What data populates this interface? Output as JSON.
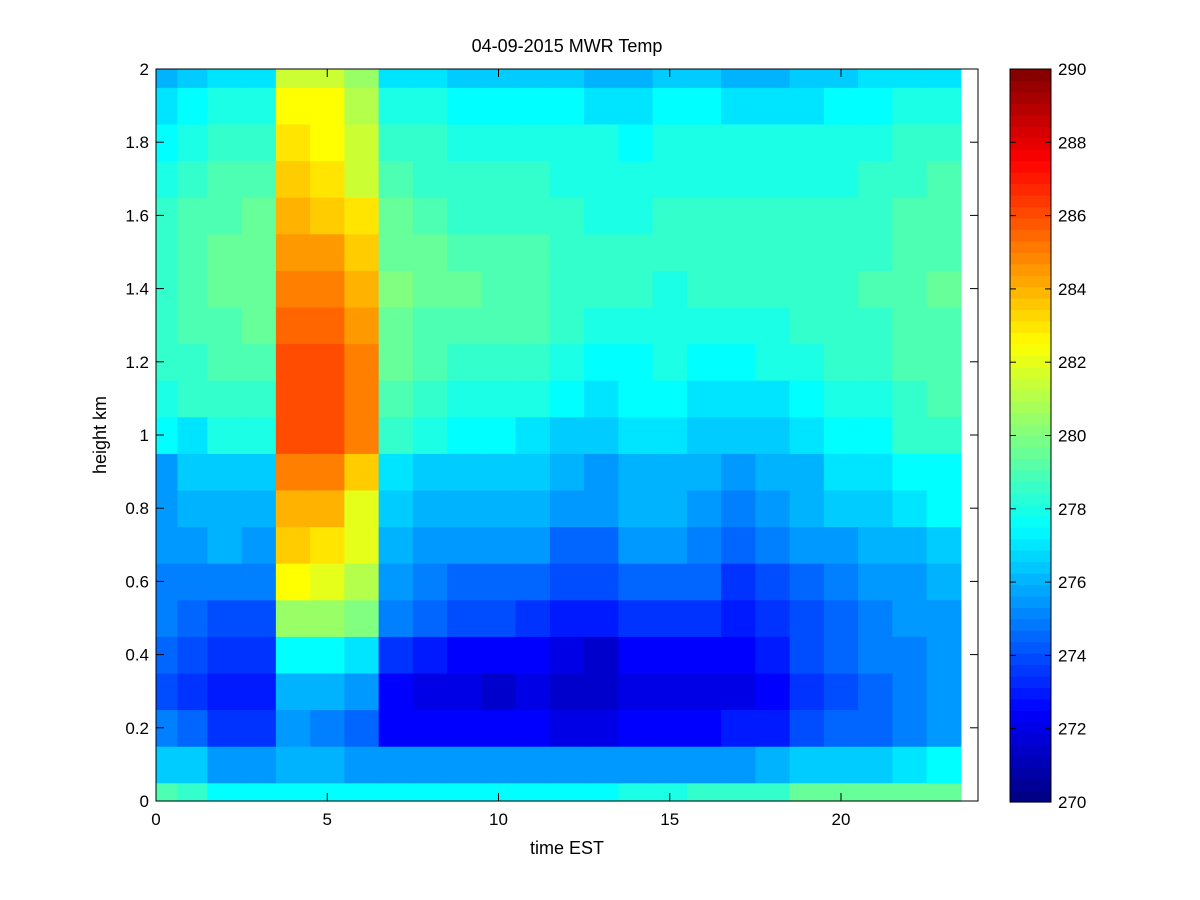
{
  "chart_data": {
    "type": "heatmap",
    "title": "04-09-2015 MWR Temp",
    "xlabel": "time EST",
    "ylabel": "height km",
    "xlim": [
      0,
      24
    ],
    "ylim": [
      0,
      2
    ],
    "x_ticks": [
      0,
      5,
      10,
      15,
      20
    ],
    "y_ticks": [
      0,
      0.2,
      0.4,
      0.6,
      0.8,
      1,
      1.2,
      1.4,
      1.6,
      1.8,
      2
    ],
    "y_tick_labels": [
      "0",
      "0.2",
      "0.4",
      "0.6",
      "0.8",
      "1",
      "1.2",
      "1.4",
      "1.6",
      "1.8",
      "2"
    ],
    "colormap": "jet",
    "clim": [
      270,
      290
    ],
    "colorbar_ticks": [
      270,
      272,
      274,
      276,
      278,
      280,
      282,
      284,
      286,
      288,
      290
    ],
    "x": [
      0.25,
      1,
      2,
      3,
      4,
      5,
      6,
      7,
      8,
      9,
      10,
      11,
      12,
      13,
      14,
      15,
      16,
      17,
      18,
      19,
      20,
      21,
      22,
      23
    ],
    "y": [
      0,
      0.1,
      0.2,
      0.3,
      0.4,
      0.5,
      0.6,
      0.7,
      0.8,
      0.9,
      1.0,
      1.1,
      1.2,
      1.3,
      1.4,
      1.5,
      1.6,
      1.7,
      1.8,
      1.9,
      2.0
    ],
    "z": [
      [
        279.0,
        278.5,
        277.5,
        277.5,
        277.5,
        277.5,
        277.5,
        277.5,
        277.5,
        277.5,
        277.5,
        277.5,
        277.5,
        277.5,
        278.0,
        278.0,
        278.5,
        278.5,
        278.5,
        279.5,
        279.5,
        279.5,
        279.5,
        279.5
      ],
      [
        276.5,
        276.5,
        275.5,
        275.5,
        276.0,
        276.0,
        275.5,
        275.5,
        275.5,
        275.5,
        275.5,
        275.5,
        275.5,
        275.5,
        275.5,
        275.5,
        275.5,
        275.5,
        276.0,
        276.5,
        276.5,
        276.5,
        277.0,
        277.5
      ],
      [
        275.0,
        274.5,
        273.5,
        273.5,
        275.5,
        275.0,
        274.5,
        272.5,
        272.5,
        272.5,
        272.5,
        272.5,
        272.0,
        272.0,
        272.5,
        272.5,
        272.5,
        273.0,
        273.0,
        274.0,
        274.5,
        274.5,
        275.0,
        275.5
      ],
      [
        274.0,
        273.5,
        273.0,
        273.0,
        276.0,
        276.0,
        275.5,
        272.5,
        272.0,
        272.0,
        271.5,
        272.0,
        271.5,
        271.5,
        272.0,
        272.0,
        272.0,
        272.0,
        272.5,
        273.5,
        274.0,
        274.5,
        275.0,
        275.5
      ],
      [
        274.5,
        274.0,
        273.5,
        273.5,
        277.5,
        277.5,
        277.0,
        273.5,
        273.0,
        272.5,
        272.5,
        272.5,
        272.0,
        271.5,
        272.5,
        272.5,
        272.5,
        272.5,
        273.0,
        274.0,
        274.5,
        275.0,
        275.0,
        275.5
      ],
      [
        275.0,
        274.5,
        274.0,
        274.0,
        280.5,
        280.5,
        280.0,
        275.0,
        274.5,
        274.0,
        274.0,
        273.5,
        273.0,
        273.0,
        273.5,
        273.5,
        273.5,
        273.0,
        273.5,
        274.0,
        274.5,
        275.0,
        275.5,
        275.5
      ],
      [
        275.0,
        275.0,
        275.0,
        275.0,
        282.5,
        282.0,
        281.0,
        275.5,
        275.0,
        274.5,
        274.5,
        274.5,
        274.0,
        274.0,
        274.5,
        274.5,
        274.5,
        273.5,
        274.0,
        274.5,
        275.0,
        275.5,
        275.5,
        276.0
      ],
      [
        275.5,
        275.5,
        276.0,
        275.5,
        283.5,
        283.0,
        282.0,
        276.0,
        275.5,
        275.5,
        275.5,
        275.5,
        274.5,
        274.5,
        275.5,
        275.5,
        275.0,
        274.5,
        275.0,
        275.5,
        275.5,
        276.0,
        276.0,
        276.5
      ],
      [
        275.5,
        276.0,
        276.0,
        276.0,
        284.0,
        284.0,
        282.0,
        276.5,
        276.0,
        276.0,
        276.0,
        276.0,
        275.5,
        275.5,
        276.0,
        276.0,
        275.5,
        275.0,
        275.5,
        276.0,
        276.5,
        276.5,
        277.0,
        277.5
      ],
      [
        275.5,
        276.5,
        276.5,
        276.5,
        285.0,
        285.0,
        283.5,
        277.0,
        276.5,
        276.5,
        276.5,
        276.5,
        276.0,
        275.5,
        276.0,
        276.0,
        276.0,
        275.5,
        276.0,
        276.0,
        277.0,
        277.0,
        277.5,
        277.5
      ],
      [
        277.5,
        277.0,
        278.0,
        278.0,
        286.0,
        286.0,
        285.0,
        278.5,
        278.0,
        277.5,
        277.5,
        277.0,
        276.5,
        276.5,
        277.0,
        277.0,
        276.5,
        276.5,
        276.5,
        277.0,
        277.5,
        277.5,
        278.5,
        278.5
      ],
      [
        278.0,
        278.5,
        278.5,
        278.5,
        286.0,
        286.0,
        285.0,
        279.0,
        278.5,
        278.0,
        278.0,
        278.0,
        277.5,
        277.0,
        277.5,
        277.5,
        277.0,
        277.0,
        277.0,
        277.5,
        278.0,
        278.0,
        278.5,
        279.0
      ],
      [
        278.5,
        278.5,
        279.0,
        279.0,
        286.0,
        286.0,
        285.0,
        279.5,
        279.0,
        278.5,
        278.5,
        278.5,
        278.0,
        277.5,
        277.5,
        278.0,
        277.5,
        277.5,
        278.0,
        278.0,
        278.5,
        278.5,
        279.0,
        279.0
      ],
      [
        278.5,
        279.0,
        279.0,
        279.5,
        285.5,
        285.5,
        284.5,
        279.5,
        279.0,
        279.0,
        279.0,
        279.0,
        278.5,
        278.0,
        278.0,
        278.0,
        278.0,
        278.0,
        278.0,
        278.5,
        278.5,
        278.5,
        279.0,
        279.0
      ],
      [
        278.5,
        279.0,
        279.5,
        279.5,
        285.0,
        285.0,
        284.0,
        280.0,
        279.5,
        279.5,
        279.0,
        279.0,
        278.5,
        278.5,
        278.5,
        278.0,
        278.5,
        278.5,
        278.5,
        278.5,
        278.5,
        279.0,
        279.0,
        279.5
      ],
      [
        278.5,
        279.0,
        279.5,
        279.5,
        284.5,
        284.5,
        283.5,
        279.5,
        279.5,
        279.0,
        279.0,
        279.0,
        278.5,
        278.5,
        278.5,
        278.5,
        278.5,
        278.5,
        278.5,
        278.5,
        278.5,
        278.5,
        279.0,
        279.0
      ],
      [
        278.5,
        279.0,
        279.0,
        279.5,
        284.0,
        283.5,
        283.0,
        279.5,
        279.0,
        278.5,
        278.5,
        278.5,
        278.5,
        278.0,
        278.0,
        278.5,
        278.5,
        278.5,
        278.5,
        278.5,
        278.5,
        278.5,
        279.0,
        279.0
      ],
      [
        278.0,
        278.5,
        279.0,
        279.0,
        283.5,
        283.0,
        281.5,
        279.0,
        278.5,
        278.5,
        278.5,
        278.5,
        278.0,
        278.0,
        278.0,
        278.0,
        278.0,
        278.0,
        278.0,
        278.0,
        278.0,
        278.5,
        278.5,
        279.0
      ],
      [
        277.5,
        278.0,
        278.5,
        278.5,
        283.0,
        282.5,
        281.5,
        278.5,
        278.5,
        278.0,
        278.0,
        278.0,
        278.0,
        278.0,
        277.5,
        278.0,
        278.0,
        278.0,
        278.0,
        278.0,
        278.0,
        278.0,
        278.5,
        278.5
      ],
      [
        277.0,
        277.5,
        278.0,
        278.0,
        282.5,
        282.5,
        281.0,
        278.0,
        278.0,
        277.5,
        277.5,
        277.5,
        277.5,
        277.0,
        277.0,
        277.5,
        277.5,
        277.0,
        277.0,
        277.0,
        277.5,
        277.5,
        278.0,
        278.0
      ],
      [
        276.0,
        276.5,
        277.0,
        277.0,
        281.5,
        281.5,
        280.5,
        277.0,
        277.0,
        276.5,
        276.5,
        276.5,
        276.5,
        276.0,
        276.0,
        276.5,
        276.5,
        276.0,
        276.0,
        276.5,
        276.5,
        277.0,
        277.0,
        277.0
      ]
    ]
  }
}
